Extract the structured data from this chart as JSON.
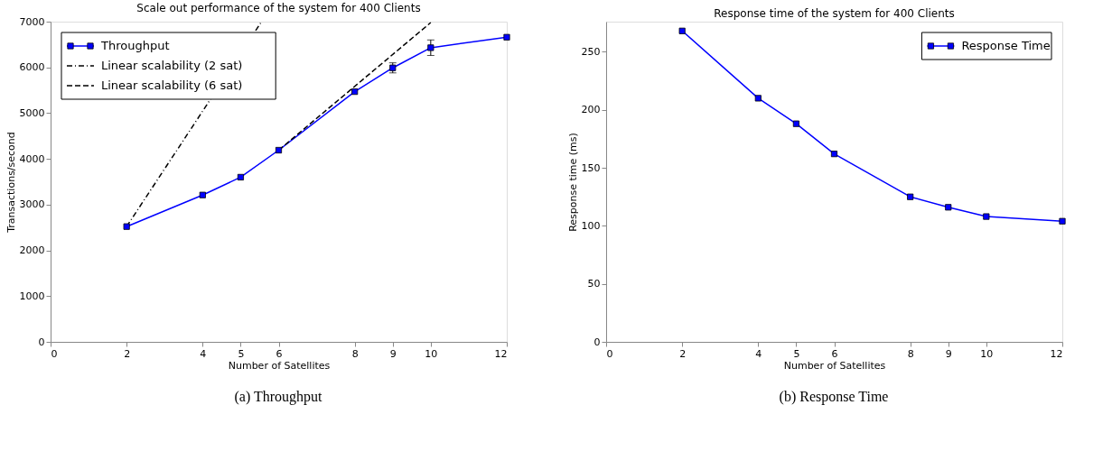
{
  "chart_data": [
    {
      "type": "line",
      "title": "Scale out performance of the system for 400 Clients",
      "xlabel": "Number of Satellites",
      "ylabel": "Transactions/second",
      "annotations": [
        "(a) Throughput"
      ],
      "xlim": [
        0,
        12
      ],
      "xticks": [
        0,
        2,
        4,
        5,
        6,
        8,
        9,
        10,
        12
      ],
      "ylim": [
        0,
        7000
      ],
      "yticks": [
        0,
        1000,
        2000,
        3000,
        4000,
        5000,
        6000,
        7000
      ],
      "grid": false,
      "legend": "top left",
      "series": [
        {
          "name": "Throughput",
          "color": "#0000ff",
          "marker": "square",
          "line_style": "solid",
          "x": [
            2,
            4,
            5,
            6,
            8,
            9,
            10,
            12
          ],
          "values": [
            2520,
            3210,
            3600,
            4190,
            5470,
            5990,
            6430,
            6660
          ],
          "errors": [
            null,
            null,
            null,
            null,
            null,
            110,
            170,
            null
          ]
        },
        {
          "name": "Linear scalability (2 sat)",
          "color": "#000000",
          "marker": "none",
          "line_style": "dashdot",
          "x": [
            2,
            5.55
          ],
          "values": [
            2520,
            7000
          ]
        },
        {
          "name": "Linear scalability (6 sat)",
          "color": "#000000",
          "marker": "none",
          "line_style": "dashed",
          "x": [
            6,
            10
          ],
          "values": [
            4190,
            6980
          ]
        }
      ]
    },
    {
      "type": "line",
      "title": "Response time of the system for 400 Clients",
      "xlabel": "Number of Satellites",
      "ylabel": "Response time (ms)",
      "annotations": [
        "(b) Response Time"
      ],
      "xlim": [
        0,
        12
      ],
      "xticks": [
        0,
        2,
        4,
        5,
        6,
        8,
        9,
        10,
        12
      ],
      "ylim": [
        0,
        276
      ],
      "yticks": [
        0,
        50,
        100,
        150,
        200,
        250
      ],
      "grid": false,
      "legend": "top right",
      "series": [
        {
          "name": "Response Time",
          "color": "#0000ff",
          "marker": "square",
          "line_style": "solid",
          "x": [
            2,
            4,
            5,
            6,
            8,
            9,
            10,
            12
          ],
          "values": [
            268,
            210,
            188,
            162,
            125,
            116,
            108,
            104
          ]
        }
      ]
    }
  ]
}
